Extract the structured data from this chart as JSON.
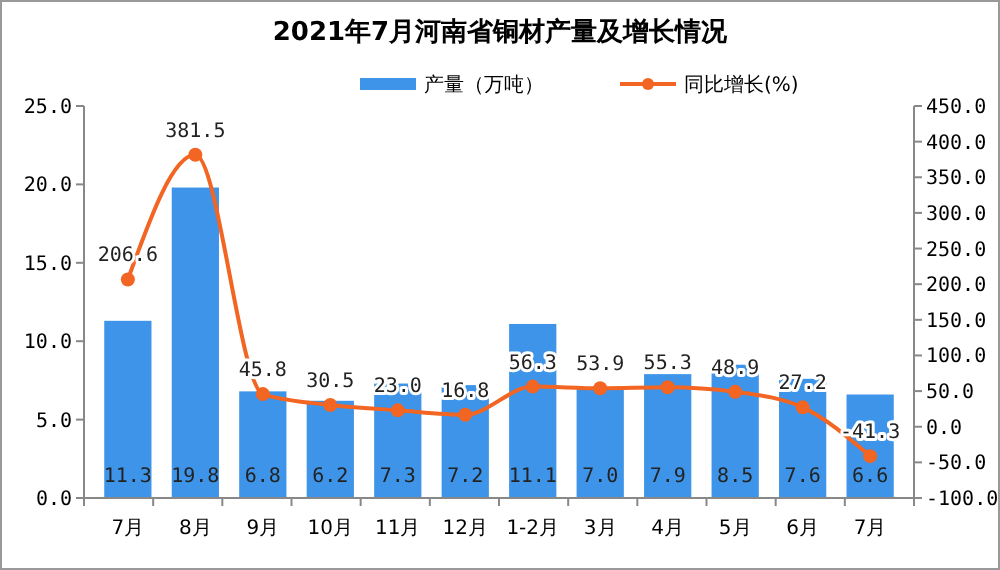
{
  "chart_data": {
    "type": "bar",
    "title": "2021年7月河南省铜材产量及增长情况",
    "categories": [
      "7月",
      "8月",
      "9月",
      "10月",
      "11月",
      "12月",
      "1-2月",
      "3月",
      "4月",
      "5月",
      "6月",
      "7月"
    ],
    "series": [
      {
        "name": "产量（万吨）",
        "color": "#3d94e8",
        "values": [
          11.3,
          19.8,
          6.8,
          6.2,
          7.3,
          7.2,
          11.1,
          7.0,
          7.9,
          8.5,
          7.6,
          6.6
        ],
        "value_labels": [
          "11.3",
          "19.8",
          "6.8",
          "6.2",
          "7.3",
          "7.2",
          "11.1",
          "7.0",
          "7.9",
          "8.5",
          "7.6",
          "6.6"
        ]
      },
      {
        "name": "同比增长(%)",
        "type": "line",
        "axis": "y2",
        "color": "#f26522",
        "values": [
          206.6,
          381.5,
          45.8,
          30.5,
          23.0,
          16.8,
          56.3,
          53.9,
          55.3,
          48.9,
          27.2,
          -41.3
        ],
        "value_labels": [
          "206.6",
          "381.5",
          "45.8",
          "30.5",
          "23.0",
          "16.8",
          "56.3",
          "53.9",
          "55.3",
          "48.9",
          "27.2",
          "-41.3"
        ]
      }
    ],
    "ylim": [
      0,
      25
    ],
    "yticks": [
      {
        "value": 0,
        "label": "0.0"
      },
      {
        "value": 5,
        "label": "5.0"
      },
      {
        "value": 10,
        "label": "10.0"
      },
      {
        "value": 15,
        "label": "15.0"
      },
      {
        "value": 20,
        "label": "20.0"
      },
      {
        "value": 25,
        "label": "25.0"
      }
    ],
    "y2lim": [
      -100,
      450
    ],
    "y2ticks": [
      {
        "value": -100,
        "label": "-100.0"
      },
      {
        "value": -50,
        "label": "-50.0"
      },
      {
        "value": 0,
        "label": "0.0"
      },
      {
        "value": 50,
        "label": "50.0"
      },
      {
        "value": 100,
        "label": "100.0"
      },
      {
        "value": 150,
        "label": "150.0"
      },
      {
        "value": 200,
        "label": "200.0"
      },
      {
        "value": 250,
        "label": "250.0"
      },
      {
        "value": 300,
        "label": "300.0"
      },
      {
        "value": 350,
        "label": "350.0"
      },
      {
        "value": 400,
        "label": "400.0"
      },
      {
        "value": 450,
        "label": "450.0"
      }
    ],
    "grid": false,
    "legend": "top right",
    "marker": "circle",
    "line_style": "solid"
  }
}
